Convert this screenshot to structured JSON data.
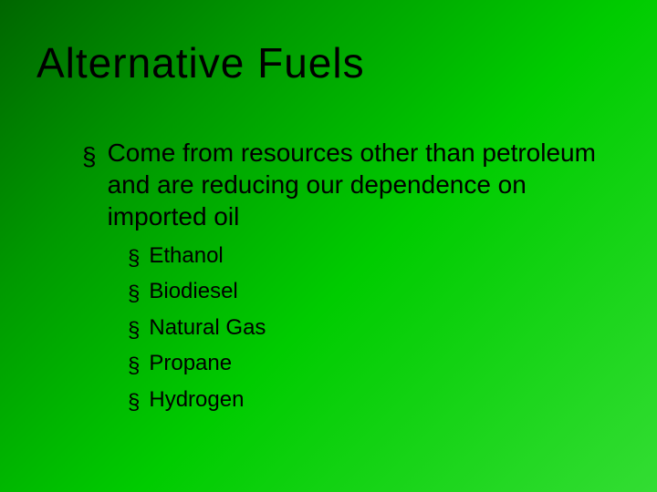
{
  "slide": {
    "title": "Alternative Fuels",
    "title_fontsize": 46,
    "title_color": "#000000",
    "background_gradient": [
      "#006600",
      "#009900",
      "#00cc00",
      "#33dd33"
    ],
    "body_fontsize_level1": 28,
    "body_fontsize_level2": 24,
    "bullet_glyph": "§",
    "bullet_color": "#000000",
    "text_color": "#000000",
    "level1_text": "Come from resources other than petroleum and are reducing our dependence on imported oil",
    "level2_items": [
      "Ethanol",
      "Biodiesel",
      "Natural Gas",
      "Propane",
      "Hydrogen"
    ]
  }
}
